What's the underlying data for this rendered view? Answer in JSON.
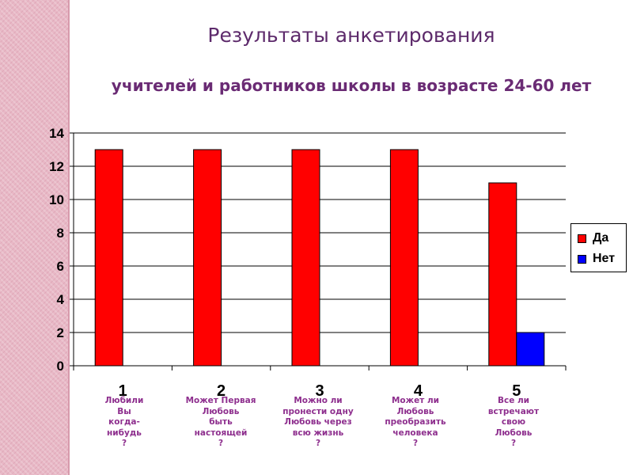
{
  "title": "Результаты анкетирования",
  "subtitle": "учителей и работников школы в возрасте 24-60 лет",
  "colors": {
    "yes": "#ff0000",
    "no": "#0000ff",
    "stripe": "#e8b8c6",
    "label": "#8e2f8e"
  },
  "chart_data": {
    "type": "bar",
    "categories": [
      "1",
      "2",
      "3",
      "4",
      "5"
    ],
    "series": [
      {
        "name": "Да",
        "values": [
          13,
          13,
          13,
          13,
          11
        ]
      },
      {
        "name": "Нет",
        "values": [
          0,
          0,
          0,
          0,
          2
        ]
      }
    ],
    "title": "",
    "xlabel": "",
    "ylabel": "",
    "ylim": [
      0,
      14
    ],
    "yticks": [
      "0",
      "2",
      "4",
      "6",
      "8",
      "10",
      "12",
      "14"
    ],
    "grid": true,
    "legend_position": "right"
  },
  "legend": [
    {
      "label": "Да"
    },
    {
      "label": "Нет"
    }
  ],
  "question_labels": [
    "Любили\nВы\nкогда-\nнибудь\n?",
    "Может Первая\nЛюбовь\nбыть\nнастоящей\n?",
    "Можно ли\nпронести одну\nЛюбовь через\nвсю жизнь\n?",
    "Может ли\nЛюбовь\nпреобразить\nчеловека\n?",
    "Все ли\nвстречают\nсвою\nЛюбовь\n?"
  ]
}
